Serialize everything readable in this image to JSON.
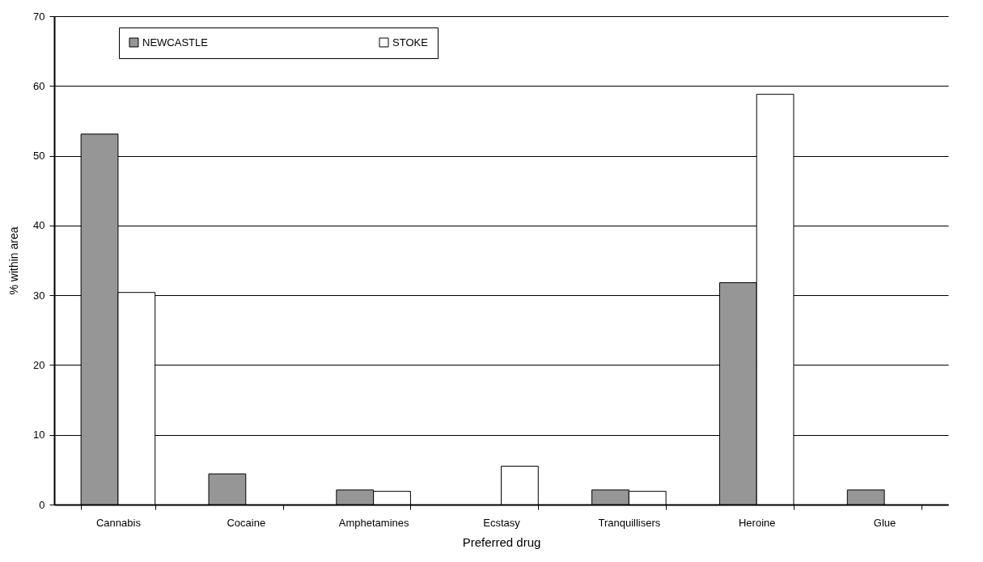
{
  "chart_data": {
    "type": "bar",
    "xlabel": "Preferred drug",
    "ylabel": "% within area",
    "categories": [
      "Cannabis",
      "Cocaine",
      "Amphetamines",
      "Ecstasy",
      "Tranquillisers",
      "Heroine",
      "Glue"
    ],
    "series": [
      {
        "name": "NEWCASTLE",
        "color": "#969696",
        "values": [
          53.1,
          4.4,
          2.1,
          0,
          2.1,
          31.8,
          2.1
        ]
      },
      {
        "name": "STOKE",
        "color": "#ffffff",
        "values": [
          30.4,
          0,
          1.9,
          5.5,
          1.9,
          58.8,
          0
        ]
      }
    ],
    "ylim": [
      0,
      70
    ],
    "yticks": [
      0,
      10,
      20,
      30,
      40,
      50,
      60,
      70
    ],
    "grid": "y",
    "legend": "top left"
  }
}
